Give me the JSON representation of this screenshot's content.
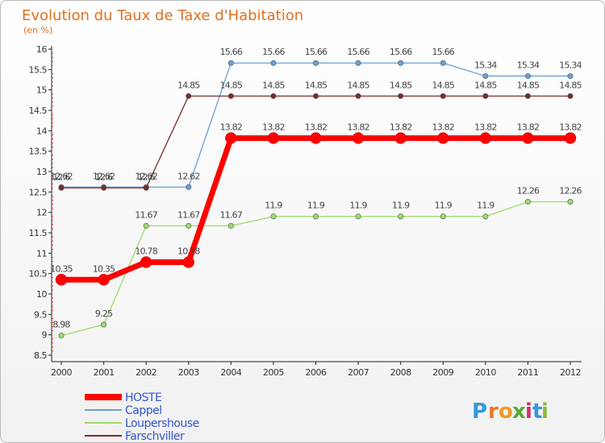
{
  "chart_data": {
    "type": "line",
    "title": "Evolution du Taux de Taxe d'Habitation",
    "subtitle": "(en %)",
    "xlabel": "",
    "ylabel": "",
    "ylim": [
      8.5,
      16
    ],
    "yticks": [
      "8.5",
      "9",
      "9.5",
      "10",
      "10.5",
      "11",
      "11.5",
      "12",
      "12.5",
      "13",
      "13.5",
      "14",
      "14.5",
      "15",
      "15.5",
      "16"
    ],
    "categories": [
      "2000",
      "2001",
      "2002",
      "2003",
      "2004",
      "2005",
      "2006",
      "2007",
      "2008",
      "2009",
      "2010",
      "2011",
      "2012"
    ],
    "series": [
      {
        "name": "HOSTE",
        "color": "#ff0000",
        "values": [
          10.35,
          10.35,
          10.78,
          10.78,
          13.82,
          13.82,
          13.82,
          13.82,
          13.82,
          13.82,
          13.82,
          13.82,
          13.82
        ],
        "labels": [
          "10.35",
          "10.35",
          "10.78",
          "10.78",
          "13.82",
          "13.82",
          "13.82",
          "13.82",
          "13.82",
          "13.82",
          "13.82",
          "13.82",
          "13.82"
        ]
      },
      {
        "name": "Cappel",
        "color": "#6a9fd4",
        "values": [
          12.62,
          12.62,
          12.62,
          12.62,
          15.66,
          15.66,
          15.66,
          15.66,
          15.66,
          15.66,
          15.34,
          15.34,
          15.34
        ],
        "labels": [
          "12.62",
          "12.62",
          "12.62",
          "12.62",
          "15.66",
          "15.66",
          "15.66",
          "15.66",
          "15.66",
          "15.66",
          "15.34",
          "15.34",
          "15.34"
        ]
      },
      {
        "name": "Loupershouse",
        "color": "#99dd66",
        "values": [
          8.98,
          9.25,
          11.67,
          11.67,
          11.67,
          11.9,
          11.9,
          11.9,
          11.9,
          11.9,
          11.9,
          12.26,
          12.26
        ],
        "labels": [
          "8.98",
          "9.25",
          "11.67",
          "11.67",
          "11.67",
          "11.9",
          "11.9",
          "11.9",
          "11.9",
          "11.9",
          "11.9",
          "12.26",
          "12.26"
        ]
      },
      {
        "name": "Farschviller",
        "color": "#7a2a2a",
        "values": [
          12.6,
          12.6,
          12.6,
          14.85,
          14.85,
          14.85,
          14.85,
          14.85,
          14.85,
          14.85,
          14.85,
          14.85,
          14.85
        ],
        "labels": [
          "12.6",
          "12.6",
          "12.6",
          "14.85",
          "14.85",
          "14.85",
          "14.85",
          "14.85",
          "14.85",
          "14.85",
          "14.85",
          "14.85",
          "14.85"
        ]
      }
    ],
    "legend_position": "bottom-left",
    "grid": false
  },
  "logo": {
    "letters": [
      "P",
      "r",
      "o",
      "x",
      "i",
      "t",
      "i"
    ],
    "colors": [
      "#3399dd",
      "#ee7722",
      "#ee9922",
      "#55aa33",
      "#cc3366",
      "#3399dd",
      "#88bb33"
    ]
  }
}
